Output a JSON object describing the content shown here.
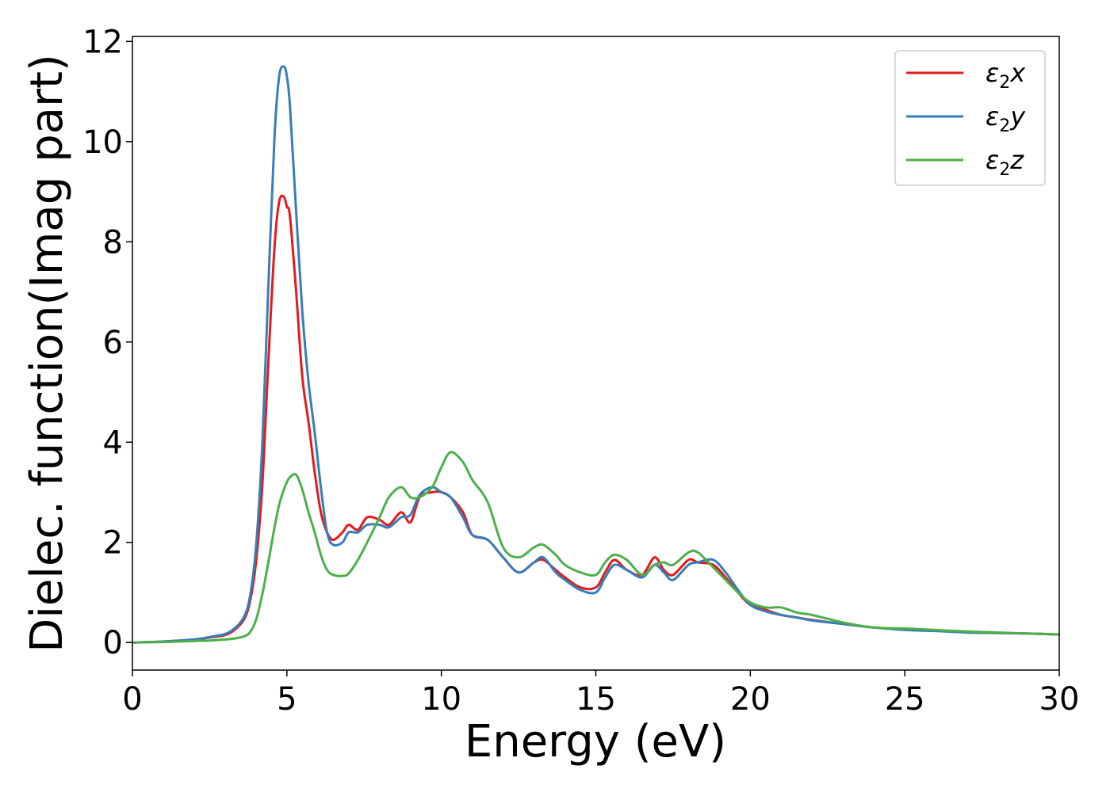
{
  "chart_data": {
    "type": "line",
    "title": "",
    "xlabel": "Energy (eV)",
    "ylabel": "Dielec. function(Imag part)",
    "xlim": [
      0,
      30
    ],
    "ylim": [
      -0.55,
      12.1
    ],
    "xticks": [
      0,
      5,
      10,
      15,
      20,
      25,
      30
    ],
    "yticks": [
      0,
      2,
      4,
      6,
      8,
      10,
      12
    ],
    "grid": false,
    "legend_position": "top-right",
    "series": [
      {
        "name": "ε2x",
        "legend_base": "ε",
        "legend_sub": "2",
        "legend_suffix": "x",
        "color": "#e41a1c",
        "x": [
          0,
          1,
          2,
          2.5,
          3,
          3.3,
          3.6,
          3.8,
          4.0,
          4.2,
          4.4,
          4.6,
          4.75,
          4.9,
          5.0,
          5.1,
          5.3,
          5.5,
          5.7,
          5.9,
          6.1,
          6.3,
          6.5,
          6.8,
          7.0,
          7.3,
          7.6,
          8.0,
          8.3,
          8.7,
          9.0,
          9.3,
          9.7,
          10.0,
          10.3,
          10.7,
          11.0,
          11.5,
          12.0,
          12.5,
          13.0,
          13.3,
          13.7,
          14.0,
          14.5,
          15.0,
          15.3,
          15.6,
          16.0,
          16.5,
          16.9,
          17.2,
          17.5,
          18.0,
          18.3,
          18.8,
          19.2,
          19.6,
          20.0,
          20.5,
          21.0,
          21.5,
          22.0,
          23.0,
          24.0,
          25.0,
          26.0,
          27.0,
          28.0,
          29.0,
          30.0
        ],
        "y": [
          0,
          0.02,
          0.06,
          0.1,
          0.15,
          0.25,
          0.45,
          0.8,
          1.6,
          3.1,
          5.6,
          7.9,
          8.8,
          8.9,
          8.7,
          8.5,
          7.0,
          5.3,
          4.4,
          3.4,
          2.6,
          2.2,
          2.05,
          2.2,
          2.35,
          2.25,
          2.5,
          2.45,
          2.35,
          2.6,
          2.4,
          2.9,
          3.0,
          3.0,
          2.9,
          2.6,
          2.15,
          2.05,
          1.7,
          1.4,
          1.6,
          1.65,
          1.45,
          1.3,
          1.1,
          1.1,
          1.4,
          1.65,
          1.45,
          1.35,
          1.7,
          1.45,
          1.35,
          1.65,
          1.6,
          1.55,
          1.3,
          1.0,
          0.75,
          0.65,
          0.55,
          0.5,
          0.45,
          0.37,
          0.3,
          0.26,
          0.24,
          0.21,
          0.19,
          0.18,
          0.16
        ]
      },
      {
        "name": "ε2y",
        "legend_base": "ε",
        "legend_sub": "2",
        "legend_suffix": "y",
        "color": "#377eb8",
        "x": [
          0,
          1,
          2,
          2.5,
          3,
          3.3,
          3.6,
          3.8,
          4.0,
          4.2,
          4.4,
          4.6,
          4.75,
          4.9,
          5.0,
          5.1,
          5.3,
          5.5,
          5.7,
          5.9,
          6.1,
          6.3,
          6.5,
          6.8,
          7.0,
          7.3,
          7.6,
          8.0,
          8.3,
          8.7,
          9.0,
          9.3,
          9.7,
          10.0,
          10.3,
          10.7,
          11.0,
          11.5,
          12.0,
          12.5,
          13.0,
          13.3,
          13.7,
          14.0,
          14.5,
          15.0,
          15.3,
          15.6,
          16.0,
          16.5,
          16.9,
          17.2,
          17.5,
          18.0,
          18.3,
          18.8,
          19.2,
          19.6,
          20.0,
          20.5,
          21.0,
          21.5,
          22.0,
          23.0,
          24.0,
          25.0,
          26.0,
          27.0,
          28.0,
          29.0,
          30.0
        ],
        "y": [
          0,
          0.02,
          0.06,
          0.11,
          0.17,
          0.28,
          0.5,
          0.9,
          1.9,
          3.9,
          7.1,
          10.1,
          11.3,
          11.5,
          11.3,
          10.7,
          8.6,
          6.6,
          5.2,
          4.2,
          3.1,
          2.2,
          1.95,
          2.0,
          2.2,
          2.2,
          2.35,
          2.35,
          2.3,
          2.5,
          2.55,
          2.95,
          3.1,
          3.0,
          2.9,
          2.5,
          2.15,
          2.05,
          1.7,
          1.4,
          1.6,
          1.7,
          1.4,
          1.25,
          1.05,
          1.0,
          1.3,
          1.55,
          1.45,
          1.3,
          1.55,
          1.4,
          1.25,
          1.55,
          1.6,
          1.65,
          1.4,
          1.05,
          0.75,
          0.62,
          0.55,
          0.5,
          0.44,
          0.37,
          0.3,
          0.25,
          0.23,
          0.2,
          0.19,
          0.18,
          0.16
        ]
      },
      {
        "name": "ε2z",
        "legend_base": "ε",
        "legend_sub": "2",
        "legend_suffix": "z",
        "color": "#4daf4a",
        "x": [
          0,
          1,
          2,
          2.5,
          3,
          3.3,
          3.6,
          3.8,
          4.0,
          4.2,
          4.4,
          4.6,
          4.75,
          4.9,
          5.0,
          5.1,
          5.3,
          5.5,
          5.7,
          5.9,
          6.1,
          6.3,
          6.5,
          6.8,
          7.0,
          7.3,
          7.6,
          8.0,
          8.3,
          8.7,
          9.0,
          9.3,
          9.7,
          10.0,
          10.3,
          10.7,
          11.0,
          11.5,
          12.0,
          12.5,
          13.0,
          13.3,
          13.7,
          14.0,
          14.5,
          15.0,
          15.3,
          15.6,
          16.0,
          16.5,
          16.9,
          17.2,
          17.5,
          18.0,
          18.3,
          18.8,
          19.2,
          19.6,
          20.0,
          20.5,
          21.0,
          21.5,
          22.0,
          23.0,
          24.0,
          25.0,
          26.0,
          27.0,
          28.0,
          29.0,
          30.0
        ],
        "y": [
          0,
          0.01,
          0.03,
          0.04,
          0.06,
          0.08,
          0.12,
          0.2,
          0.45,
          0.95,
          1.6,
          2.3,
          2.75,
          3.05,
          3.2,
          3.3,
          3.35,
          3.05,
          2.6,
          2.2,
          1.75,
          1.45,
          1.35,
          1.33,
          1.38,
          1.65,
          2.0,
          2.5,
          2.9,
          3.1,
          2.9,
          2.9,
          3.1,
          3.5,
          3.8,
          3.6,
          3.25,
          2.8,
          1.9,
          1.7,
          1.9,
          1.95,
          1.75,
          1.55,
          1.4,
          1.35,
          1.6,
          1.75,
          1.65,
          1.35,
          1.55,
          1.6,
          1.55,
          1.8,
          1.8,
          1.5,
          1.25,
          1.0,
          0.8,
          0.7,
          0.7,
          0.6,
          0.55,
          0.4,
          0.3,
          0.28,
          0.25,
          0.22,
          0.2,
          0.18,
          0.16
        ]
      }
    ]
  }
}
